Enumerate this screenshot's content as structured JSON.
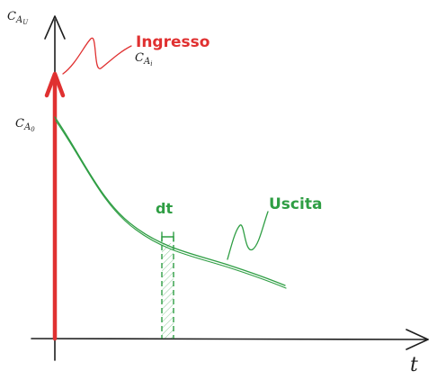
{
  "labels": {
    "y_axis_main": "C",
    "y_axis_sub": "A",
    "y_axis_subsub": "U",
    "ingresso_title": "Ingresso",
    "ingresso_main": "C",
    "ingresso_sub": "A",
    "ingresso_subsub": "i",
    "start_main": "C",
    "start_sub": "A",
    "start_subsub": "0",
    "dt": "dt",
    "uscita": "Uscita",
    "x_axis": "t"
  },
  "colors": {
    "axis": "#1e1e1e",
    "ingresso": "#e03131",
    "uscita": "#2f9e44",
    "strip_fill": "#b2f2bb"
  }
}
